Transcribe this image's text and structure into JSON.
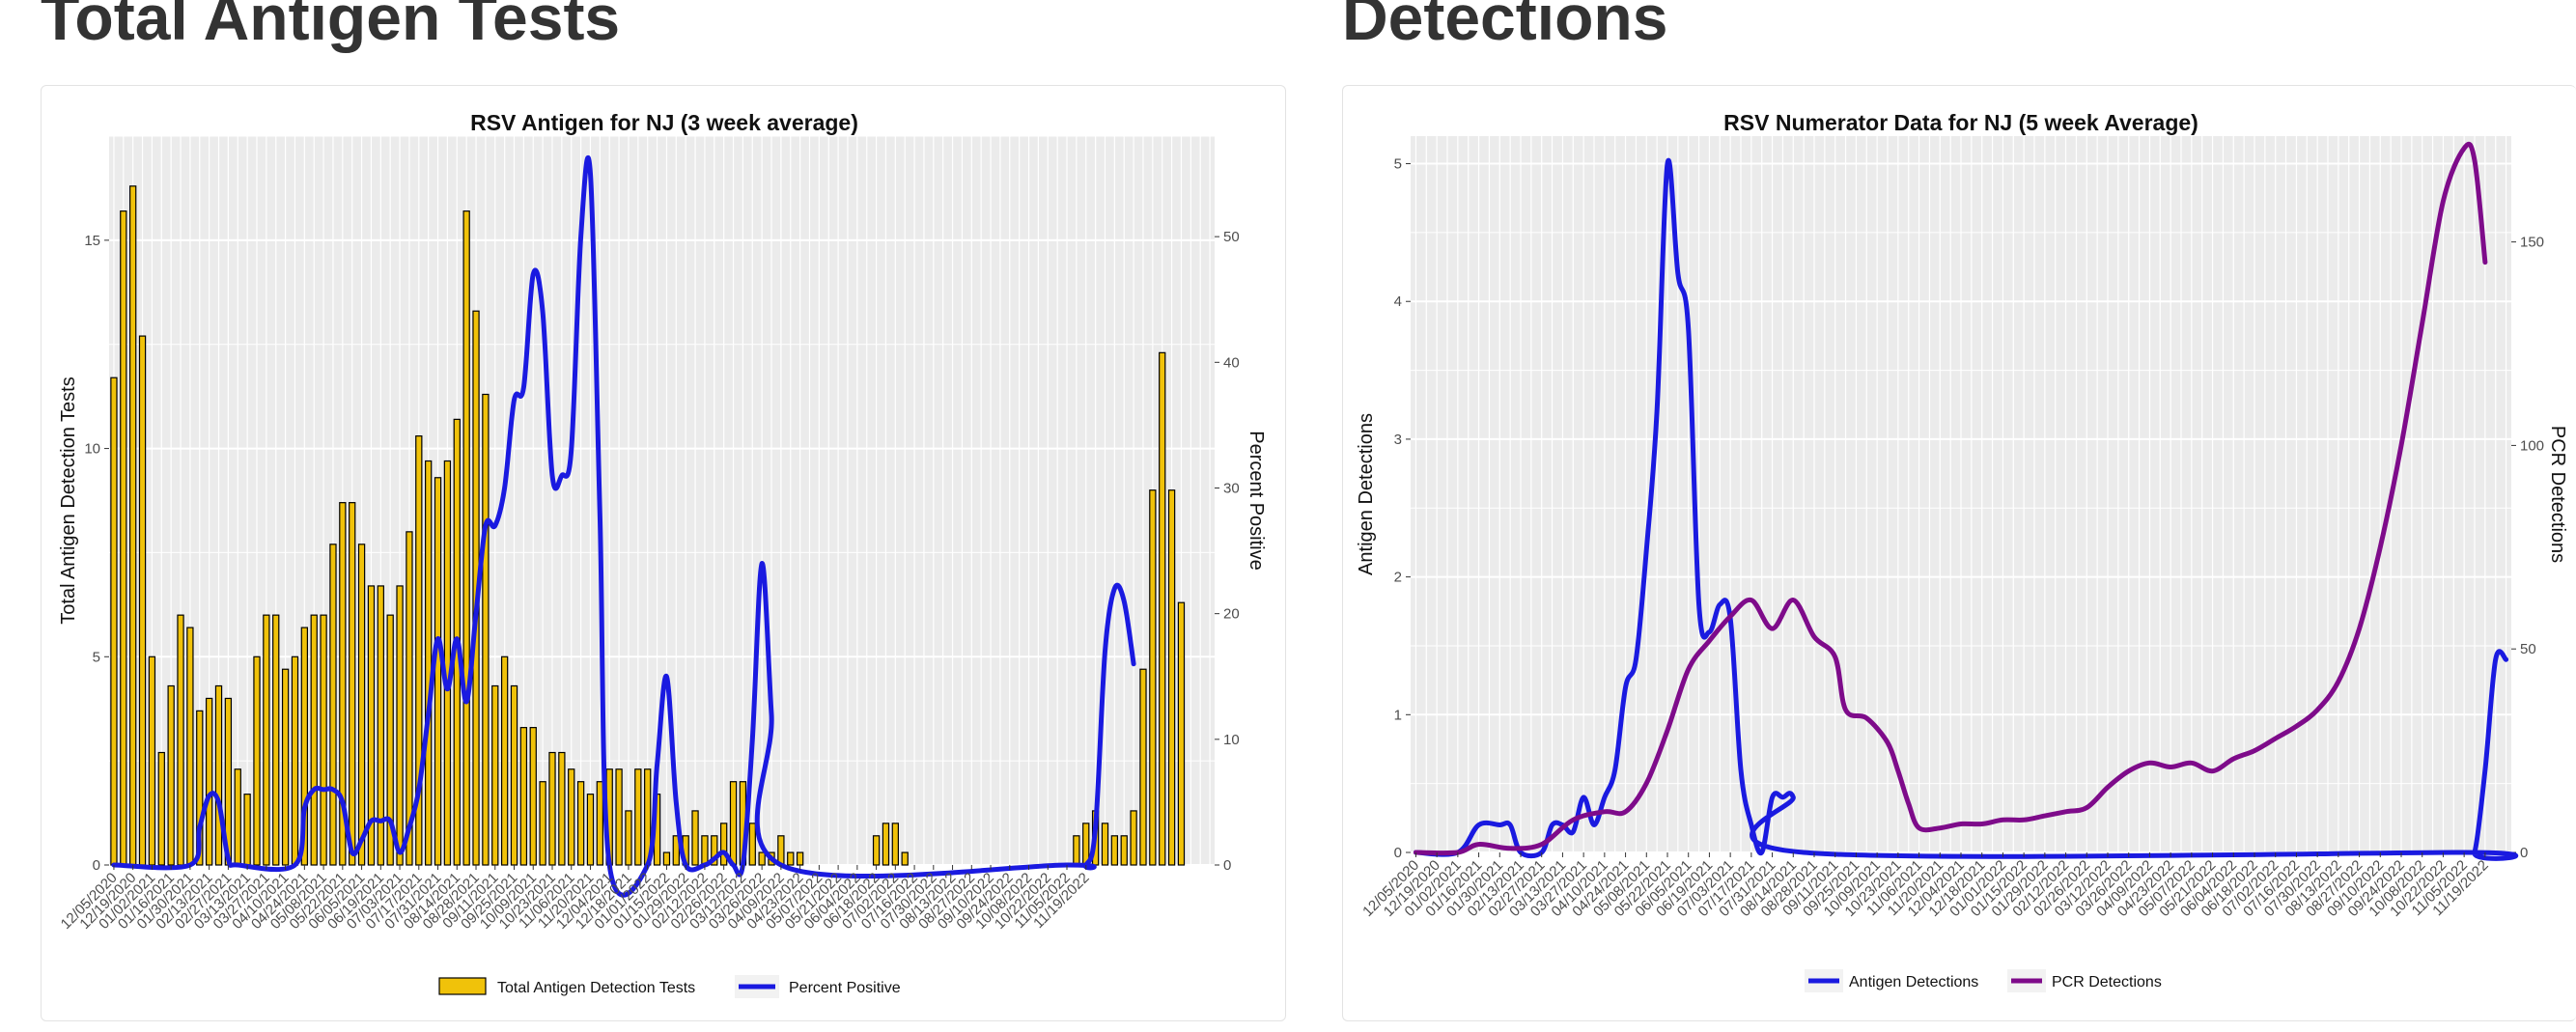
{
  "page": {
    "titles": [
      "Total Antigen Tests",
      "Detections"
    ]
  },
  "colors": {
    "bar_fill": "#f0c20a",
    "bar_stroke": "#000000",
    "blue": "#1a1ae0",
    "purple": "#7e0b8a",
    "panel": "#ebebeb"
  },
  "chart_data": [
    {
      "type": "bar+line",
      "title": "RSV Antigen for NJ (3 week average)",
      "ylabel": "Total Antigen Detection Tests",
      "y2label": "Percent Positive",
      "ylim": [
        0,
        17.5
      ],
      "y2lim": [
        0,
        58
      ],
      "yticks": [
        0,
        5,
        10,
        15
      ],
      "y2ticks": [
        0,
        10,
        20,
        30,
        40,
        50
      ],
      "x_tick_labels": [
        "12/05/2020",
        "12/19/2020",
        "01/02/2021",
        "01/16/2021",
        "01/30/2021",
        "02/13/2021",
        "02/27/2021",
        "03/13/2021",
        "03/27/2021",
        "04/10/2021",
        "04/24/2021",
        "05/08/2021",
        "05/22/2021",
        "06/05/2021",
        "06/19/2021",
        "07/03/2021",
        "07/17/2021",
        "07/31/2021",
        "08/14/2021",
        "08/28/2021",
        "09/11/2021",
        "09/25/2021",
        "10/09/2021",
        "10/23/2021",
        "11/06/2021",
        "11/20/2021",
        "12/04/2021",
        "12/18/2021",
        "01/01/2022",
        "01/15/2022",
        "01/29/2022",
        "02/12/2022",
        "02/26/2022",
        "03/12/2022",
        "03/26/2022",
        "04/09/2022",
        "04/23/2022",
        "05/07/2022",
        "05/21/2022",
        "06/04/2022",
        "06/18/2022",
        "07/02/2022",
        "07/16/2022",
        "07/30/2022",
        "08/13/2022",
        "08/27/2022",
        "09/10/2022",
        "09/24/2022",
        "10/08/2022",
        "10/22/2022",
        "11/05/2022",
        "11/19/2022"
      ],
      "bars": {
        "name": "Total Antigen Detection Tests",
        "values": [
          11.7,
          15.7,
          16.3,
          12.7,
          5.0,
          2.7,
          4.3,
          6.0,
          5.7,
          3.7,
          4.0,
          4.3,
          4.0,
          2.3,
          1.7,
          5.0,
          6.0,
          6.0,
          4.7,
          5.0,
          5.7,
          6.0,
          6.0,
          7.7,
          8.7,
          8.7,
          7.7,
          6.7,
          6.7,
          6.0,
          6.7,
          8.0,
          10.3,
          9.7,
          9.3,
          9.7,
          10.7,
          15.7,
          13.3,
          11.3,
          4.3,
          5.0,
          4.3,
          3.3,
          3.3,
          2.0,
          2.7,
          2.7,
          2.3,
          2.0,
          1.7,
          2.0,
          2.3,
          2.3,
          1.3,
          2.3,
          2.3,
          1.7,
          0.3,
          0.7,
          0.7,
          1.3,
          0.7,
          0.7,
          1.0,
          2.0,
          2.0,
          1.0,
          0.3,
          0.3,
          0.7,
          0.3,
          0.3,
          0,
          0,
          0,
          0,
          0,
          0,
          0,
          0.7,
          1.0,
          1.0,
          0.3,
          0,
          0,
          0,
          0,
          0,
          0,
          0,
          0,
          0,
          0,
          0,
          0,
          0,
          0,
          0,
          0,
          0,
          0.7,
          1.0,
          1.3,
          1.0,
          0.7,
          0.7,
          1.3,
          4.7,
          9.0,
          12.3,
          9.0,
          6.3
        ]
      },
      "line": {
        "name": "Percent Positive",
        "points": [
          [
            0,
            0
          ],
          [
            8,
            0
          ],
          [
            9,
            3
          ],
          [
            10,
            5.5
          ],
          [
            11,
            5
          ],
          [
            12,
            0.5
          ],
          [
            13,
            0
          ],
          [
            19,
            0
          ],
          [
            20,
            4.5
          ],
          [
            21,
            6
          ],
          [
            22,
            6
          ],
          [
            23,
            6
          ],
          [
            24,
            5
          ],
          [
            25,
            1
          ],
          [
            26,
            2
          ],
          [
            27,
            3.5
          ],
          [
            28,
            3.5
          ],
          [
            29,
            3.5
          ],
          [
            30,
            1
          ],
          [
            31,
            3
          ],
          [
            32,
            6
          ],
          [
            33,
            12
          ],
          [
            34,
            18
          ],
          [
            35,
            14
          ],
          [
            36,
            18
          ],
          [
            37,
            13
          ],
          [
            38,
            20
          ],
          [
            39,
            27
          ],
          [
            40,
            27
          ],
          [
            41,
            30
          ],
          [
            42,
            37
          ],
          [
            43,
            38
          ],
          [
            44,
            47
          ],
          [
            45,
            44
          ],
          [
            46,
            31
          ],
          [
            47,
            31
          ],
          [
            48,
            33
          ],
          [
            49,
            50
          ],
          [
            50,
            55
          ],
          [
            51,
            28
          ],
          [
            52,
            0
          ],
          [
            56,
            0
          ],
          [
            57,
            8
          ],
          [
            58,
            15
          ],
          [
            59,
            5
          ],
          [
            60,
            0
          ],
          [
            62,
            0
          ],
          [
            63,
            0.5
          ],
          [
            64,
            1
          ],
          [
            65,
            0
          ],
          [
            66,
            0
          ],
          [
            67,
            10
          ],
          [
            68,
            24
          ],
          [
            69,
            12
          ],
          [
            70,
            0
          ],
          [
            100,
            0
          ],
          [
            102,
            0
          ],
          [
            103,
            3
          ],
          [
            104,
            17
          ],
          [
            105,
            22
          ],
          [
            106,
            21
          ],
          [
            107,
            16
          ]
        ]
      },
      "legend": [
        "Total Antigen Detection Tests",
        "Percent Positive"
      ]
    },
    {
      "type": "line",
      "title": "RSV Numerator Data for NJ (5 week Average)",
      "ylabel": "Antigen Detections",
      "y2label": "PCR Detections",
      "ylim": [
        0,
        5.2
      ],
      "y2lim": [
        0,
        176
      ],
      "yticks": [
        0,
        1,
        2,
        3,
        4,
        5
      ],
      "y2ticks": [
        0,
        50,
        100,
        150
      ],
      "x_tick_labels": [
        "12/05/2020",
        "12/19/2020",
        "01/02/2021",
        "01/16/2021",
        "01/30/2021",
        "02/13/2021",
        "02/27/2021",
        "03/13/2021",
        "03/27/2021",
        "04/10/2021",
        "04/24/2021",
        "05/08/2021",
        "05/22/2021",
        "06/05/2021",
        "06/19/2021",
        "07/03/2021",
        "07/17/2021",
        "07/31/2021",
        "08/14/2021",
        "08/28/2021",
        "09/11/2021",
        "09/25/2021",
        "10/09/2021",
        "10/23/2021",
        "11/06/2021",
        "11/20/2021",
        "12/04/2021",
        "12/18/2021",
        "01/01/2022",
        "01/15/2022",
        "01/29/2022",
        "02/12/2022",
        "02/26/2022",
        "03/12/2022",
        "03/26/2022",
        "04/09/2022",
        "04/23/2022",
        "05/07/2022",
        "05/21/2022",
        "06/04/2022",
        "06/18/2022",
        "07/02/2022",
        "07/16/2022",
        "07/30/2022",
        "08/13/2022",
        "08/27/2022",
        "09/10/2022",
        "09/24/2022",
        "10/08/2022",
        "10/22/2022",
        "11/05/2022",
        "11/19/2022"
      ],
      "series": [
        {
          "name": "Antigen Detections",
          "axis": "left",
          "color": "#1a1ae0",
          "points": [
            [
              0,
              0
            ],
            [
              4,
              0
            ],
            [
              6,
              0.2
            ],
            [
              8,
              0.2
            ],
            [
              9,
              0.2
            ],
            [
              10,
              0
            ],
            [
              12,
              0
            ],
            [
              13,
              0.2
            ],
            [
              14,
              0.2
            ],
            [
              15,
              0.15
            ],
            [
              16,
              0.4
            ],
            [
              17,
              0.2
            ],
            [
              18,
              0.4
            ],
            [
              19,
              0.6
            ],
            [
              20,
              1.2
            ],
            [
              21,
              1.4
            ],
            [
              22,
              2.2
            ],
            [
              23,
              3.2
            ],
            [
              24,
              5.0
            ],
            [
              25,
              4.2
            ],
            [
              26,
              3.8
            ],
            [
              27,
              1.8
            ],
            [
              28,
              1.6
            ],
            [
              29,
              1.8
            ],
            [
              30,
              1.7
            ],
            [
              31,
              0.6
            ],
            [
              32,
              0.2
            ],
            [
              33,
              0
            ],
            [
              34,
              0.4
            ],
            [
              35,
              0.4
            ],
            [
              36,
              0.4
            ],
            [
              37,
              0
            ],
            [
              100,
              0
            ],
            [
              101,
              0
            ],
            [
              102,
              0.6
            ],
            [
              103,
              1.4
            ],
            [
              104,
              1.4
            ]
          ]
        },
        {
          "name": "PCR Detections",
          "axis": "right",
          "color": "#7e0b8a",
          "points": [
            [
              0,
              0
            ],
            [
              4,
              0
            ],
            [
              6,
              2
            ],
            [
              9,
              1
            ],
            [
              12,
              2
            ],
            [
              15,
              8
            ],
            [
              18,
              10
            ],
            [
              20,
              10
            ],
            [
              22,
              17
            ],
            [
              24,
              30
            ],
            [
              26,
              45
            ],
            [
              28,
              52
            ],
            [
              30,
              58
            ],
            [
              32,
              62
            ],
            [
              34,
              55
            ],
            [
              36,
              62
            ],
            [
              38,
              53
            ],
            [
              40,
              48
            ],
            [
              41,
              35
            ],
            [
              43,
              33
            ],
            [
              45,
              27
            ],
            [
              46,
              20
            ],
            [
              47,
              12
            ],
            [
              48,
              6
            ],
            [
              50,
              6
            ],
            [
              52,
              7
            ],
            [
              54,
              7
            ],
            [
              56,
              8
            ],
            [
              58,
              8
            ],
            [
              60,
              9
            ],
            [
              62,
              10
            ],
            [
              64,
              11
            ],
            [
              66,
              16
            ],
            [
              68,
              20
            ],
            [
              70,
              22
            ],
            [
              72,
              21
            ],
            [
              74,
              22
            ],
            [
              76,
              20
            ],
            [
              78,
              23
            ],
            [
              80,
              25
            ],
            [
              82,
              28
            ],
            [
              84,
              31
            ],
            [
              86,
              35
            ],
            [
              88,
              42
            ],
            [
              90,
              55
            ],
            [
              92,
              75
            ],
            [
              94,
              100
            ],
            [
              96,
              130
            ],
            [
              98,
              160
            ],
            [
              100,
              173
            ],
            [
              101,
              170
            ],
            [
              102,
              145
            ]
          ]
        }
      ],
      "legend": [
        "Antigen Detections",
        "PCR Detections"
      ]
    }
  ]
}
